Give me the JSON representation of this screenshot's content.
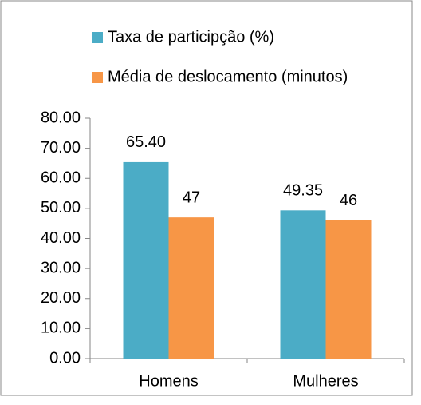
{
  "chart_data": {
    "type": "bar",
    "categories": [
      "Homens",
      "Mulheres"
    ],
    "series": [
      {
        "name": "Taxa de participção (%)",
        "color": "#4bacc6",
        "values": [
          65.4,
          49.35
        ],
        "value_labels": [
          "65.40",
          "49.35"
        ]
      },
      {
        "name": "Média de deslocamento (minutos)",
        "color": "#f79646",
        "values": [
          47,
          46
        ]
      }
    ],
    "ylim": [
      0,
      80
    ],
    "yticks": [
      {
        "value": 0,
        "label": "0.00"
      },
      {
        "value": 10,
        "label": "10.00"
      },
      {
        "value": 20,
        "label": "20.00"
      },
      {
        "value": 30,
        "label": "30.00"
      },
      {
        "value": 40,
        "label": "40.00"
      },
      {
        "value": 50,
        "label": "50.00"
      },
      {
        "value": 60,
        "label": "60.00"
      },
      {
        "value": 70,
        "label": "70.00"
      },
      {
        "value": 80,
        "label": "80.00"
      }
    ],
    "legend": "top-left"
  }
}
